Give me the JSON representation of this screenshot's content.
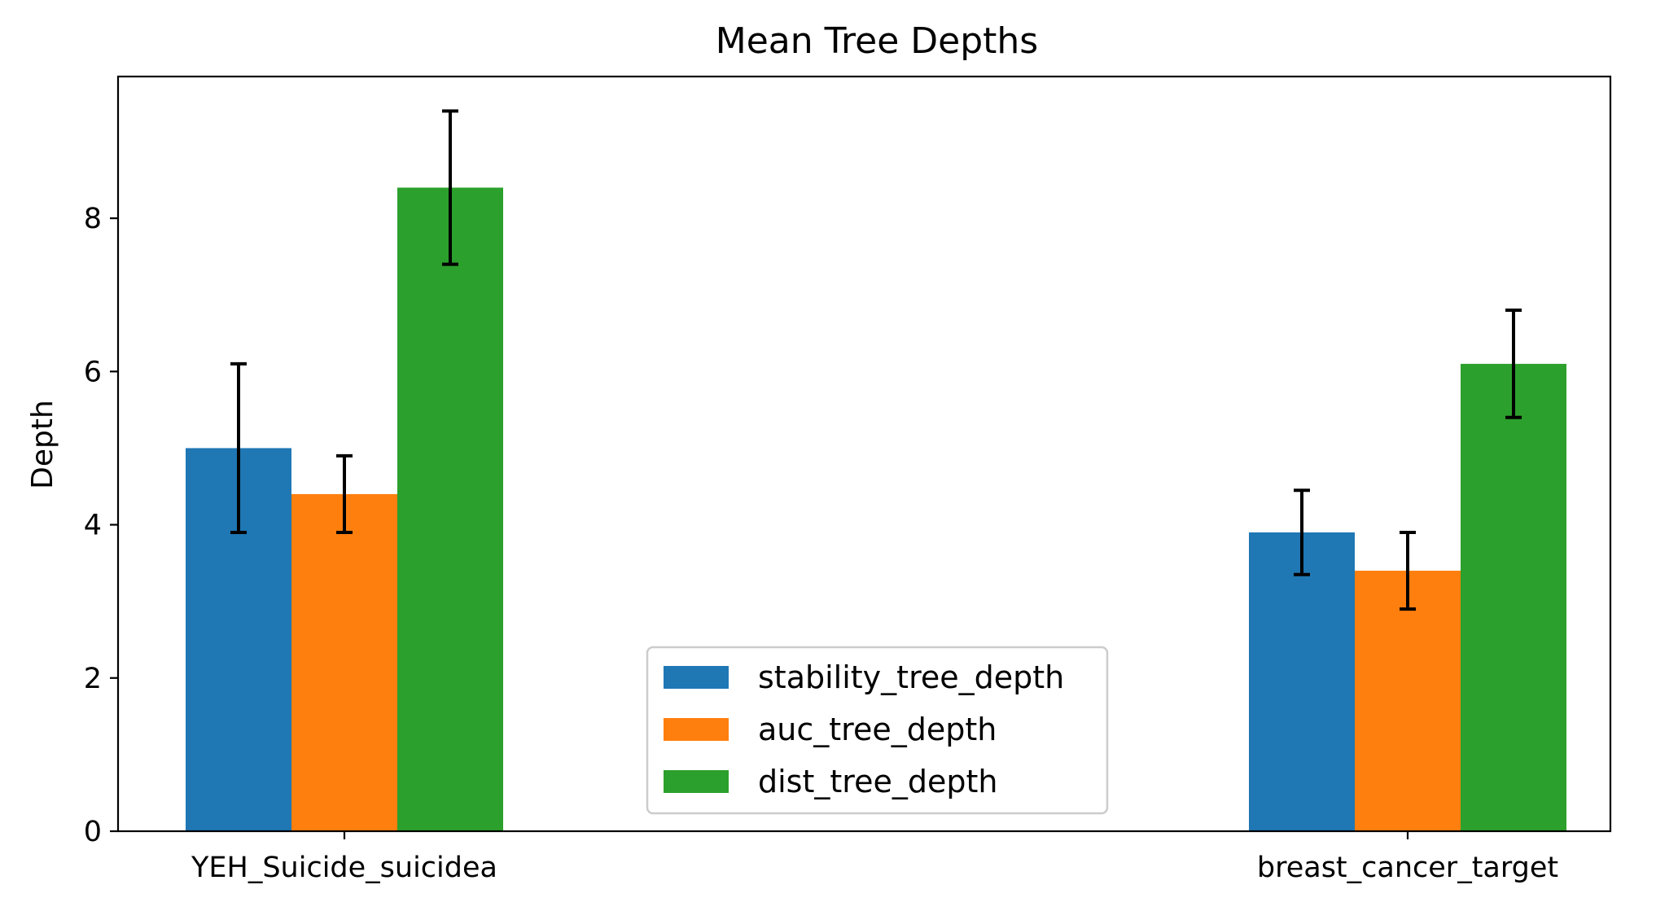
{
  "chart_data": {
    "type": "bar",
    "title": "Mean Tree Depths",
    "xlabel": "",
    "ylabel": "Depth",
    "categories": [
      "YEH_Suicide_suicidea",
      "breast_cancer_target"
    ],
    "series": [
      {
        "name": "stability_tree_depth",
        "color": "#1f77b4",
        "values": [
          5.0,
          3.9
        ],
        "errors": [
          1.1,
          0.55
        ]
      },
      {
        "name": "auc_tree_depth",
        "color": "#ff7f0e",
        "values": [
          4.4,
          3.4
        ],
        "errors": [
          0.5,
          0.5
        ]
      },
      {
        "name": "dist_tree_depth",
        "color": "#2ca02c",
        "values": [
          8.4,
          6.1
        ],
        "errors": [
          1.0,
          0.7
        ]
      }
    ],
    "ylim": [
      0,
      9.85
    ],
    "yticks": [
      0,
      2,
      4,
      6,
      8
    ],
    "grid": false,
    "legend_position": "lower center"
  }
}
